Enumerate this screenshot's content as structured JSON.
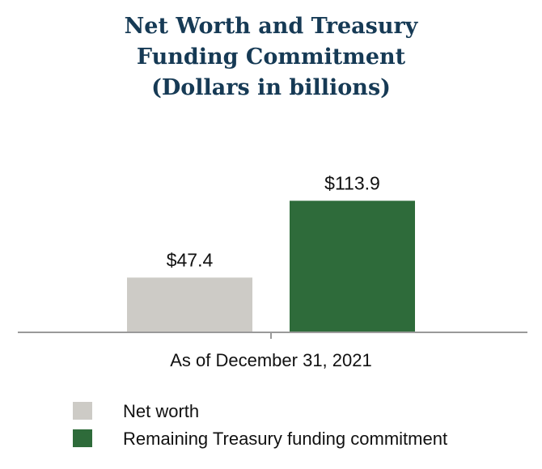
{
  "chart_data": {
    "type": "bar",
    "title_lines": [
      "Net Worth and Treasury",
      "Funding Commitment",
      "(Dollars in billions)"
    ],
    "categories": [
      "As of December 31, 2021"
    ],
    "series": [
      {
        "name": "Net worth",
        "values": [
          47.4
        ],
        "value_labels": [
          "$47.4"
        ],
        "color": "#cdcbc6"
      },
      {
        "name": "Remaining Treasury funding commitment",
        "values": [
          113.9
        ],
        "value_labels": [
          "$113.9"
        ],
        "color": "#2e6b3a"
      }
    ],
    "ylim": [
      0,
      140
    ],
    "grid": false,
    "legend_position": "bottom-left"
  },
  "colors": {
    "title": "#163a55",
    "axis": "#9a9a9a"
  }
}
